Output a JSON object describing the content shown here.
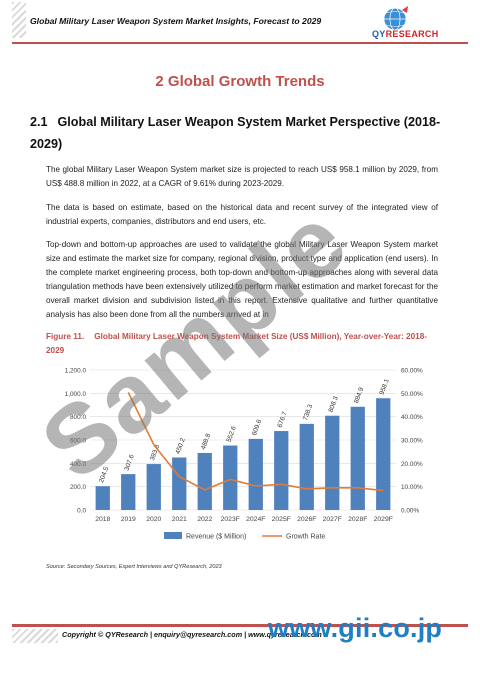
{
  "header": {
    "title": "Global Military Laser Weapon System Market Insights, Forecast to 2029",
    "logo_text_main": "QY",
    "logo_text_accent": "RESEARCH"
  },
  "chapter": {
    "heading": "2  Global Growth Trends"
  },
  "section": {
    "number": "2.1",
    "title": "Global Military Laser Weapon System Market Perspective (2018-2029)"
  },
  "paragraphs": [
    "The global Military Laser Weapon System market size is projected to reach US$ 958.1 million by 2029, from US$ 488.8 million in 2022, at a CAGR of 9.61% during 2023-2029.",
    "The data is based on estimate, based on the historical data and recent survey of the integrated view of industrial experts, companies, distributors and end users, etc.",
    "Top-down and bottom-up approaches are used to validate the global Military Laser Weapon System market size and estimate the market size for company, regional division, product type and application (end users). In the complete market engineering process, both top-down and bottom-up approaches along with several data triangulation methods have been extensively utilized to perform market estimation and market forecast for the overall market division and subdivision listed in this report. Extensive qualitative and further quantitative analysis has also been done from all the numbers arrived at in"
  ],
  "figure": {
    "label": "Figure 11.",
    "caption": "Global Military Laser Weapon System Market Size (US$ Million), Year-over-Year: 2018-2029"
  },
  "chart_data": {
    "type": "bar",
    "categories": [
      "2018",
      "2019",
      "2020",
      "2021",
      "2022",
      "2023F",
      "2024F",
      "2025F",
      "2026F",
      "2027F",
      "2028F",
      "2029F"
    ],
    "series": [
      {
        "name": "Revenue ($ Million)",
        "type": "bar",
        "axis": "left",
        "values": [
          204.5,
          307.6,
          393.8,
          450.2,
          488.8,
          552.6,
          609.6,
          676.7,
          738.3,
          808.3,
          884.9,
          958.1
        ],
        "color": "#4f81bd"
      },
      {
        "name": "Growth Rate",
        "type": "line",
        "axis": "right",
        "values": [
          null,
          50.4,
          28.0,
          14.3,
          8.6,
          13.1,
          10.3,
          11.0,
          9.1,
          9.5,
          9.5,
          8.3
        ],
        "color": "#e07b39"
      }
    ],
    "data_labels": [
      "204.5",
      "307.6",
      "393.8",
      "450.2",
      "488.8",
      "552.6",
      "609.6",
      "676.7",
      "738.3",
      "808.3",
      "884.9",
      "958.1"
    ],
    "ylim": [
      0,
      1200
    ],
    "y_ticks": [
      "0.0",
      "200.0",
      "400.0",
      "600.0",
      "800.0",
      "1,000.0",
      "1,200.0"
    ],
    "y2lim": [
      0,
      60
    ],
    "y2_ticks": [
      "0.00%",
      "10.00%",
      "20.00%",
      "30.00%",
      "40.00%",
      "50.00%",
      "60.00%"
    ],
    "grid": true,
    "legend_position": "bottom"
  },
  "source": "Source: Secondary Sources, Expert Interviews and QYResearch, 2023",
  "footer": {
    "text": "Copyright © QYResearch | enquiry@qyresearch.com | www.qyresearch.com",
    "gii": "www.gii.co.jp"
  },
  "watermark": "Sample",
  "colors": {
    "accent": "#c0504d",
    "bar": "#4f81bd",
    "line": "#e07b39",
    "gii": "#1e7fc4"
  }
}
